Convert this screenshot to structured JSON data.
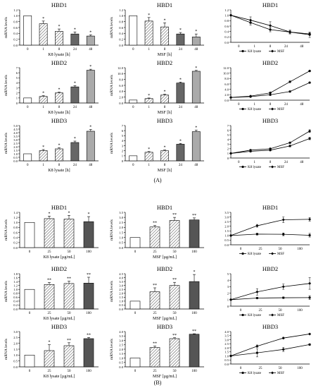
{
  "panel_labels": {
    "a": "(A)",
    "b": "(B)"
  },
  "chart_data": [
    {
      "id": "A1",
      "type": "bar",
      "title": "HBD1",
      "xlabel": "K8 lysate [h]",
      "ylabel": "mRNA levels",
      "categories": [
        "0",
        "1",
        "8",
        "24",
        "48"
      ],
      "values": [
        1.0,
        0.73,
        0.47,
        0.38,
        0.31
      ],
      "errors": [
        0,
        0.09,
        0.08,
        0.07,
        0.04
      ],
      "significance": [
        "",
        "*",
        "*",
        "*",
        "*"
      ],
      "ylim": [
        0,
        1.2
      ],
      "yticks": [
        0,
        0.2,
        0.4,
        0.6,
        0.8,
        1.0,
        1.2
      ],
      "tick_decimals": 1
    },
    {
      "id": "A2",
      "type": "bar",
      "title": "HBD1",
      "xlabel": "MSF [h]",
      "ylabel": "mRNA levels",
      "categories": [
        "0",
        "1",
        "8",
        "24",
        "48"
      ],
      "values": [
        1.0,
        0.82,
        0.62,
        0.38,
        0.28
      ],
      "errors": [
        0,
        0.12,
        0.14,
        0.05,
        0.1
      ],
      "significance": [
        "",
        "*",
        "*",
        "*",
        "*"
      ],
      "ylim": [
        0,
        1.2
      ],
      "yticks": [
        0,
        0.2,
        0.4,
        0.6,
        0.8,
        1.0,
        1.2
      ],
      "tick_decimals": 1
    },
    {
      "id": "A3",
      "type": "line",
      "title": "HBD1",
      "categories": [
        "0",
        "1",
        "8",
        "24",
        "48"
      ],
      "series": [
        {
          "name": "K8 lysate",
          "values": [
            1.0,
            0.73,
            0.47,
            0.38,
            0.31
          ],
          "errors": [
            0,
            0.09,
            0.08,
            0.07,
            0.04
          ],
          "marker": "circle"
        },
        {
          "name": "MSF",
          "values": [
            1.0,
            0.82,
            0.62,
            0.38,
            0.28
          ],
          "errors": [
            0,
            0.12,
            0.14,
            0.05,
            0.1
          ],
          "marker": "diamond"
        }
      ],
      "ylim": [
        0,
        1.2
      ],
      "yticks": [
        0,
        0.2,
        0.4,
        0.6,
        0.8,
        1.0,
        1.2
      ],
      "tick_decimals": 1,
      "legend": "bottom"
    },
    {
      "id": "A4",
      "type": "bar",
      "title": "HBD2",
      "xlabel": "K8 lysate [h]",
      "ylabel": "mRNA levels",
      "categories": [
        "0",
        "1",
        "8",
        "24",
        "48"
      ],
      "values": [
        1.0,
        1.3,
        2.0,
        3.2,
        6.5
      ],
      "errors": [
        0,
        0.15,
        0.15,
        0.25,
        0.2
      ],
      "significance": [
        "",
        "*",
        "*",
        "*",
        "*"
      ],
      "ylim": [
        0,
        7
      ],
      "yticks": [
        0,
        1,
        2,
        3,
        4,
        5,
        6,
        7
      ],
      "tick_decimals": 0
    },
    {
      "id": "A5",
      "type": "bar",
      "title": "HBD2",
      "xlabel": "MSF [h]",
      "ylabel": "mRNA levels",
      "categories": [
        "0",
        "1",
        "8",
        "24",
        "48"
      ],
      "values": [
        1.0,
        1.5,
        2.7,
        6.8,
        10.8
      ],
      "errors": [
        0,
        0.2,
        0.3,
        0.3,
        0.3
      ],
      "significance": [
        "",
        "*",
        "*",
        "*",
        "*"
      ],
      "ylim": [
        0,
        12
      ],
      "yticks": [
        0,
        2,
        4,
        6,
        8,
        10,
        12
      ],
      "tick_decimals": 1
    },
    {
      "id": "A6",
      "type": "line",
      "title": "HBD2",
      "categories": [
        "0",
        "1",
        "8",
        "24",
        "48"
      ],
      "series": [
        {
          "name": "K8 lysate",
          "values": [
            1.0,
            1.3,
            2.0,
            3.2,
            6.5
          ],
          "errors": [
            0,
            0.15,
            0.15,
            0.25,
            0.2
          ],
          "marker": "circle"
        },
        {
          "name": "MSF",
          "values": [
            1.0,
            1.5,
            2.7,
            6.8,
            10.8
          ],
          "errors": [
            0,
            0.2,
            0.3,
            0.3,
            0.3
          ],
          "marker": "diamond"
        }
      ],
      "ylim": [
        0,
        12
      ],
      "yticks": [
        0,
        2,
        4,
        6,
        8,
        10,
        12
      ],
      "tick_decimals": 1,
      "legend": "bottom"
    },
    {
      "id": "A7",
      "type": "bar",
      "title": "HBD3",
      "xlabel": "K8 lysate [h]",
      "ylabel": "mRNA levels",
      "categories": [
        "0",
        "1",
        "8",
        "24",
        "48"
      ],
      "values": [
        1.0,
        1.45,
        1.7,
        2.6,
        4.2
      ],
      "errors": [
        0,
        0.15,
        0.15,
        0.2,
        0.25
      ],
      "significance": [
        "",
        "*",
        "*",
        "*",
        "*"
      ],
      "ylim": [
        0,
        5
      ],
      "yticks": [
        0,
        0.5,
        1,
        1.5,
        2,
        2.5,
        3,
        3.5,
        4,
        4.5,
        5
      ],
      "tick_decimals": 1
    },
    {
      "id": "A8",
      "type": "bar",
      "title": "HBD3",
      "xlabel": "MSF [h]",
      "ylabel": "mRNA levels",
      "categories": [
        "0",
        "1",
        "8",
        "24",
        "48"
      ],
      "values": [
        1.0,
        1.7,
        2.0,
        3.3,
        5.8
      ],
      "errors": [
        0,
        0.15,
        0.15,
        0.15,
        0.3
      ],
      "significance": [
        "",
        "*",
        "*",
        "*",
        "*"
      ],
      "ylim": [
        0,
        7
      ],
      "yticks": [
        0,
        1,
        2,
        3,
        4,
        5,
        6,
        7
      ],
      "tick_decimals": 0
    },
    {
      "id": "A9",
      "type": "line",
      "title": "HBD3",
      "categories": [
        "0",
        "1",
        "8",
        "24",
        "48"
      ],
      "series": [
        {
          "name": "K8 lysate",
          "values": [
            1.0,
            1.45,
            1.7,
            2.6,
            4.2
          ],
          "errors": [
            0,
            0.15,
            0.15,
            0.2,
            0.25
          ],
          "marker": "circle"
        },
        {
          "name": "MSF",
          "values": [
            1.0,
            1.7,
            2.0,
            3.3,
            5.8
          ],
          "errors": [
            0,
            0.15,
            0.15,
            0.15,
            0.3
          ],
          "marker": "diamond"
        }
      ],
      "ylim": [
        0,
        7
      ],
      "yticks": [
        0,
        1,
        2,
        3,
        4,
        5,
        6,
        7
      ],
      "tick_decimals": 0,
      "legend": "bottom"
    },
    {
      "id": "B1",
      "type": "bar",
      "title": "HBD1",
      "xlabel": "K8 lysate [µg/mL]",
      "ylabel": "mRNA levels",
      "categories": [
        "0",
        "25",
        "50",
        "100"
      ],
      "values": [
        1.0,
        1.15,
        1.13,
        1.03
      ],
      "errors": [
        0,
        0.1,
        0.15,
        0.2
      ],
      "significance": [
        "",
        "*",
        "*",
        "*"
      ],
      "ylim": [
        0,
        1.4
      ],
      "yticks": [
        0,
        0.2,
        0.4,
        0.6,
        0.8,
        1.0,
        1.2,
        1.4
      ],
      "tick_decimals": 1
    },
    {
      "id": "B2",
      "type": "bar",
      "title": "HBD1",
      "xlabel": "MSF [µg/mL]",
      "ylabel": "mRNA levels",
      "categories": [
        "0",
        "25",
        "50",
        "100"
      ],
      "values": [
        1.0,
        2.05,
        2.7,
        2.75
      ],
      "errors": [
        0,
        0.15,
        0.3,
        0.2
      ],
      "significance": [
        "",
        "**",
        "**",
        "**"
      ],
      "ylim": [
        0,
        3.5
      ],
      "yticks": [
        0,
        0.5,
        1,
        1.5,
        2,
        2.5,
        3,
        3.5
      ],
      "tick_decimals": 1
    },
    {
      "id": "B3",
      "type": "line",
      "title": "HBD1",
      "categories": [
        "0",
        "25",
        "50",
        "100"
      ],
      "series": [
        {
          "name": "K8 lysate",
          "values": [
            1.0,
            1.15,
            1.13,
            1.03
          ],
          "errors": [
            0,
            0.1,
            0.15,
            0.2
          ],
          "marker": "circle"
        },
        {
          "name": "MSF",
          "values": [
            1.0,
            2.05,
            2.7,
            2.75
          ],
          "errors": [
            0,
            0.15,
            0.3,
            0.2
          ],
          "marker": "diamond"
        }
      ],
      "ylim": [
        0,
        3.5
      ],
      "yticks": [
        0,
        0.5,
        1,
        1.5,
        2,
        2.5,
        3,
        3.5
      ],
      "tick_decimals": 1,
      "legend": "bottom"
    },
    {
      "id": "B4",
      "type": "bar",
      "title": "HBD2",
      "xlabel": "K8 lysate [µg/mL]",
      "ylabel": "mRNA levels",
      "categories": [
        "0",
        "25",
        "50",
        "100"
      ],
      "values": [
        1.0,
        1.25,
        1.3,
        1.32
      ],
      "errors": [
        0,
        0.1,
        0.12,
        0.3
      ],
      "significance": [
        "",
        "**",
        "**",
        "**"
      ],
      "ylim": [
        0,
        1.8
      ],
      "yticks": [
        0,
        0.2,
        0.4,
        0.6,
        0.8,
        1.0,
        1.2,
        1.4,
        1.6,
        1.8
      ],
      "tick_decimals": 1
    },
    {
      "id": "B5",
      "type": "bar",
      "title": "HBD2",
      "xlabel": "MSF [µg/mL]",
      "ylabel": "mRNA levels",
      "categories": [
        "0",
        "25",
        "50",
        "100"
      ],
      "values": [
        1.0,
        2.2,
        3.0,
        3.5
      ],
      "errors": [
        0,
        0.5,
        0.4,
        0.9
      ],
      "significance": [
        "",
        "**",
        "**",
        "*"
      ],
      "ylim": [
        0,
        4.5
      ],
      "yticks": [
        0,
        0.5,
        1,
        1.5,
        2,
        2.5,
        3,
        3.5,
        4,
        4.5
      ],
      "tick_decimals": 1
    },
    {
      "id": "B6",
      "type": "line",
      "title": "HBD2",
      "categories": [
        "0",
        "25",
        "50",
        "100"
      ],
      "series": [
        {
          "name": "K8 lysate",
          "values": [
            1.0,
            1.25,
            1.3,
            1.32
          ],
          "errors": [
            0,
            0.1,
            0.12,
            0.3
          ],
          "marker": "circle"
        },
        {
          "name": "MSF",
          "values": [
            1.0,
            2.2,
            3.0,
            3.5
          ],
          "errors": [
            0,
            0.5,
            0.4,
            0.9
          ],
          "marker": "diamond"
        }
      ],
      "ylim": [
        0,
        5
      ],
      "yticks": [
        0,
        1,
        2,
        3,
        4,
        5
      ],
      "tick_decimals": 0,
      "legend": "bottom"
    },
    {
      "id": "B7",
      "type": "bar",
      "title": "HBD3",
      "xlabel": "K8 lysate [µg/mL]",
      "ylabel": "mRNA levels",
      "categories": [
        "0",
        "25",
        "50",
        "100"
      ],
      "values": [
        1.0,
        1.38,
        1.8,
        2.4
      ],
      "errors": [
        0,
        0.5,
        0.25,
        0.1
      ],
      "significance": [
        "",
        "*",
        "**",
        "**"
      ],
      "ylim": [
        0,
        3
      ],
      "yticks": [
        0,
        0.5,
        1,
        1.5,
        2,
        2.5,
        3
      ],
      "tick_decimals": 1
    },
    {
      "id": "B8",
      "type": "bar",
      "title": "HBD3",
      "xlabel": "MSF [µg/mL]",
      "ylabel": "mRNA levels",
      "categories": [
        "0",
        "25",
        "50",
        "100"
      ],
      "values": [
        1.0,
        2.2,
        3.2,
        3.7
      ],
      "errors": [
        0,
        0.15,
        0.1,
        0.05
      ],
      "significance": [
        "",
        "**",
        "**",
        "**"
      ],
      "ylim": [
        0,
        4
      ],
      "yticks": [
        0,
        0.5,
        1,
        1.5,
        2,
        2.5,
        3,
        3.5,
        4
      ],
      "tick_decimals": 1
    },
    {
      "id": "B9",
      "type": "line",
      "title": "HBD3",
      "categories": [
        "0",
        "25",
        "50",
        "100"
      ],
      "series": [
        {
          "name": "K8 lysate",
          "values": [
            1.0,
            1.38,
            1.8,
            2.4
          ],
          "errors": [
            0,
            0.5,
            0.25,
            0.1
          ],
          "marker": "circle"
        },
        {
          "name": "MSF",
          "values": [
            1.0,
            2.2,
            3.2,
            3.7
          ],
          "errors": [
            0,
            0.15,
            0.1,
            0.05
          ],
          "marker": "diamond"
        }
      ],
      "ylim": [
        0,
        4
      ],
      "yticks": [
        0,
        0.5,
        1,
        1.5,
        2,
        2.5,
        3,
        3.5,
        4
      ],
      "tick_decimals": 1,
      "legend": "bottom"
    }
  ]
}
